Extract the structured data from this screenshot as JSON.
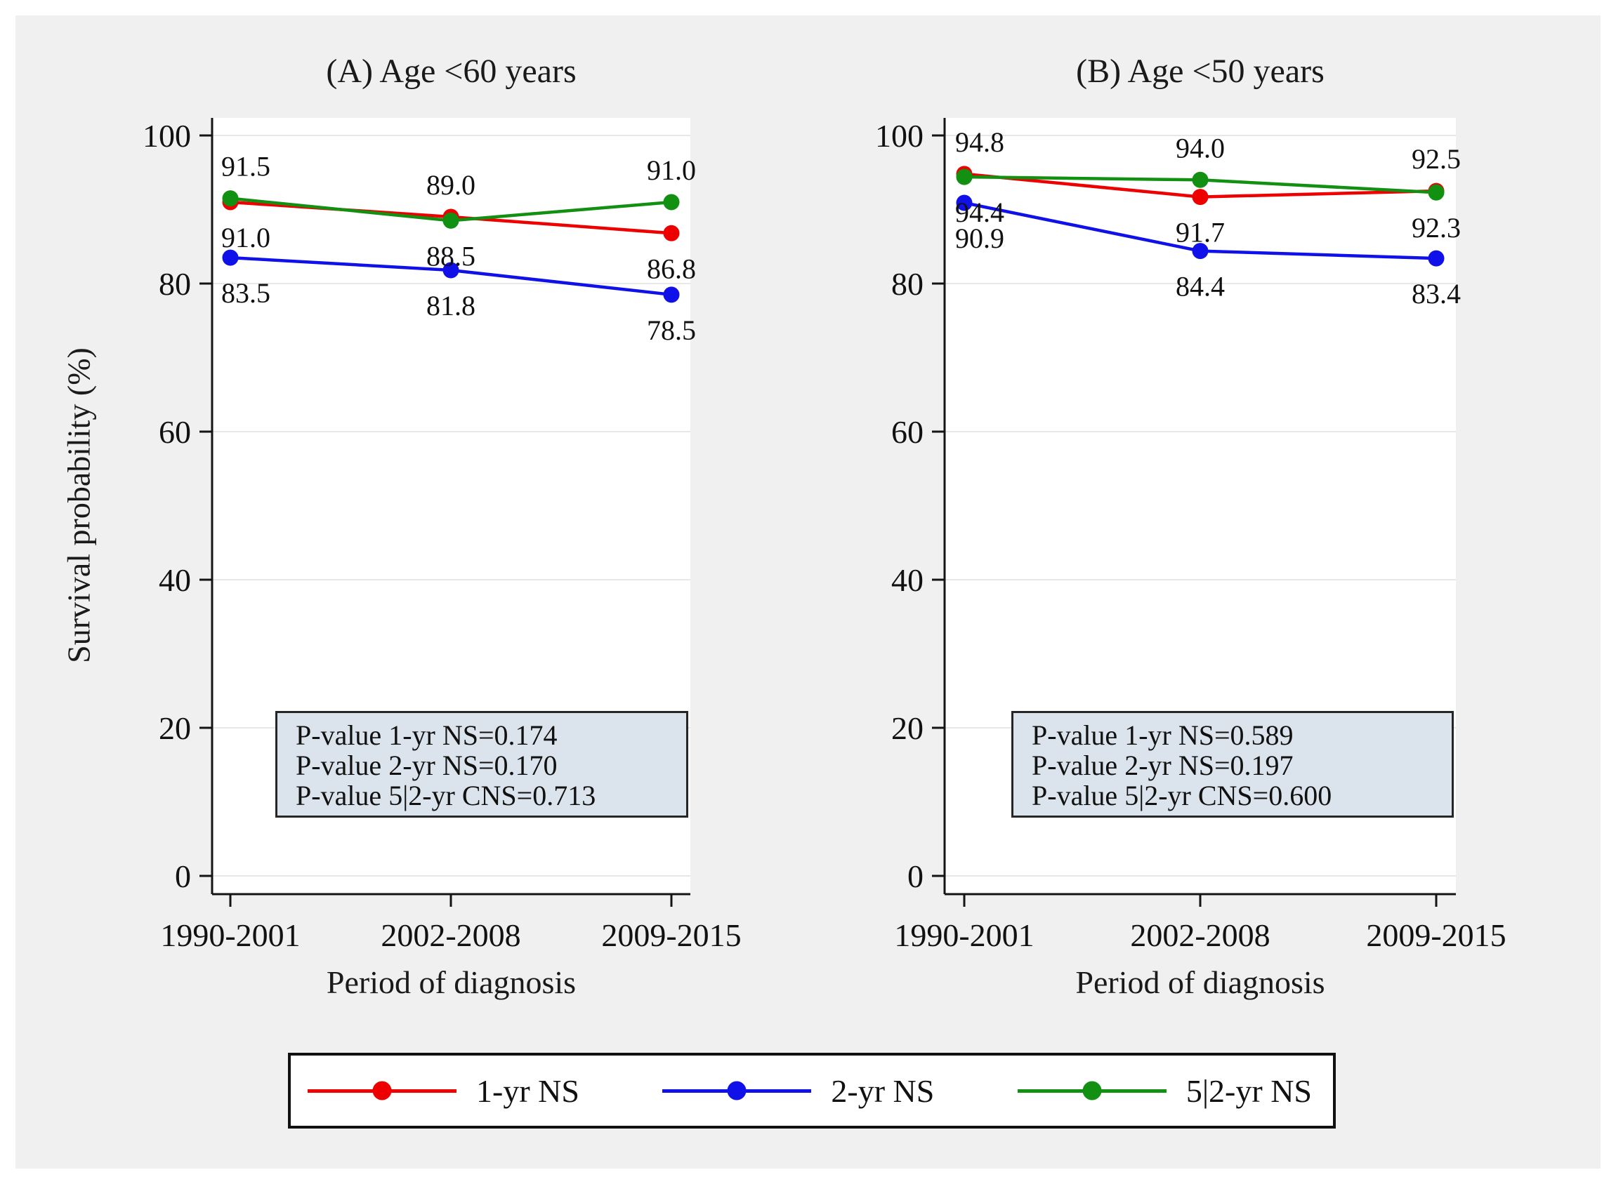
{
  "figure": {
    "page_background": "#ffffff",
    "background": "#f0f0f0",
    "plot_background": "#ffffff",
    "grid_color": "#e7e7e7",
    "axis_color": "#141414",
    "pvalue_box_bg": "#dbe4ec",
    "pvalue_box_border": "#262626"
  },
  "ylabel": "Survival probability (%)",
  "xlabel": "Period of diagnosis",
  "legend": {
    "position": "bottom",
    "items": [
      {
        "label": "1-yr NS",
        "color": "#ef0000"
      },
      {
        "label": "2-yr NS",
        "color": "#1010e8"
      },
      {
        "label": "5|2-yr NS",
        "color": "#129012"
      }
    ]
  },
  "chart_data": [
    {
      "type": "line",
      "title": "(A) Age <60 years",
      "xlabel": "Period of diagnosis",
      "ylabel": "Survival probability (%)",
      "categories": [
        "1990-2001",
        "2002-2008",
        "2009-2015"
      ],
      "ylim": [
        0,
        100
      ],
      "yticks": [
        0,
        20,
        40,
        60,
        80,
        100
      ],
      "grid": true,
      "series": [
        {
          "name": "1-yr NS",
          "color": "#ef0000",
          "values": [
            91.0,
            89.0,
            86.8
          ],
          "label_side": [
            "below",
            "above",
            "below"
          ]
        },
        {
          "name": "2-yr NS",
          "color": "#1010e8",
          "values": [
            83.5,
            81.8,
            78.5
          ],
          "label_side": [
            "below",
            "below",
            "below"
          ]
        },
        {
          "name": "5|2-yr NS",
          "color": "#129012",
          "values": [
            91.5,
            88.5,
            91.0
          ],
          "label_side": [
            "above",
            "below",
            "above"
          ]
        }
      ],
      "p_values": [
        "P-value 1-yr NS=0.174",
        "P-value 2-yr NS=0.170",
        "P-value 5|2-yr CNS=0.713"
      ]
    },
    {
      "type": "line",
      "title": "(B) Age <50 years",
      "xlabel": "Period of diagnosis",
      "ylabel": "Survival probability (%)",
      "categories": [
        "1990-2001",
        "2002-2008",
        "2009-2015"
      ],
      "ylim": [
        0,
        100
      ],
      "yticks": [
        0,
        20,
        40,
        60,
        80,
        100
      ],
      "grid": true,
      "series": [
        {
          "name": "1-yr NS",
          "color": "#ef0000",
          "values": [
            94.8,
            91.7,
            92.5
          ],
          "label_side": [
            "above",
            "below",
            "above"
          ]
        },
        {
          "name": "2-yr NS",
          "color": "#1010e8",
          "values": [
            90.9,
            84.4,
            83.4
          ],
          "label_side": [
            "below",
            "below",
            "below"
          ]
        },
        {
          "name": "5|2-yr NS",
          "color": "#129012",
          "values": [
            94.4,
            94.0,
            92.3
          ],
          "label_side": [
            "below",
            "above",
            "below"
          ]
        }
      ],
      "p_values": [
        "P-value 1-yr NS=0.589",
        "P-value 2-yr NS=0.197",
        "P-value 5|2-yr CNS=0.600"
      ]
    }
  ]
}
